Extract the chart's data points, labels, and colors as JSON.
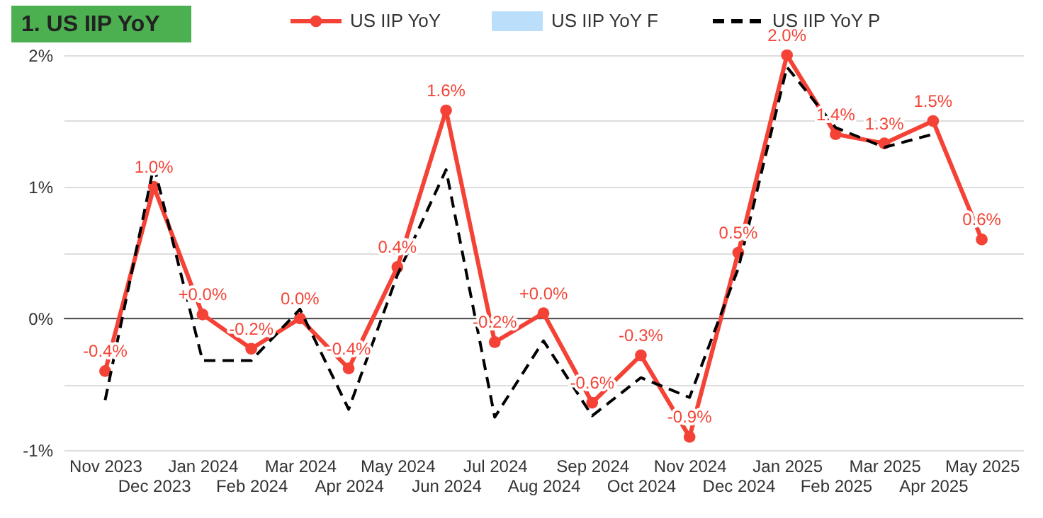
{
  "chart_data": {
    "type": "line",
    "title": "1. US IIP YoY",
    "categories": [
      "Nov 2023",
      "Dec 2023",
      "Jan 2024",
      "Feb 2024",
      "Mar 2024",
      "Apr 2024",
      "May 2024",
      "Jun 2024",
      "Jul 2024",
      "Aug 2024",
      "Sep 2024",
      "Oct 2024",
      "Nov 2024",
      "Dec 2024",
      "Jan 2025",
      "Feb 2025",
      "Mar 2025",
      "Apr 2025",
      "May 2025"
    ],
    "series": [
      {
        "name": "US IIP YoY",
        "color": "#f44336",
        "marker": "circle",
        "line_style": "solid",
        "values": [
          -0.4,
          1.0,
          0.03,
          -0.23,
          0.0,
          -0.38,
          0.39,
          1.58,
          -0.18,
          0.04,
          -0.64,
          -0.28,
          -0.9,
          0.5,
          2.0,
          1.4,
          1.33,
          1.5,
          0.6
        ],
        "value_labels": [
          "-0.4%",
          "1.0%",
          "+0.0%",
          "-0.2%",
          "0.0%",
          "-0.4%",
          "0.4%",
          "1.6%",
          "-0.2%",
          "+0.0%",
          "-0.6%",
          "-0.3%",
          "-0.9%",
          "0.5%",
          "2.0%",
          "1.4%",
          "1.3%",
          "1.5%",
          "0.6%"
        ]
      },
      {
        "name": "US IIP YoY F",
        "color": "#bbdefb",
        "type": "area",
        "values": [
          null,
          null,
          null,
          null,
          null,
          null,
          null,
          null,
          null,
          null,
          null,
          null,
          null,
          null,
          null,
          null,
          null,
          null,
          null
        ]
      },
      {
        "name": "US IIP YoY P",
        "color": "#000000",
        "marker": "none",
        "line_style": "dashed",
        "values": [
          -0.62,
          1.16,
          -0.32,
          -0.32,
          0.07,
          -0.69,
          0.33,
          1.13,
          -0.75,
          -0.17,
          -0.74,
          -0.45,
          -0.6,
          0.38,
          1.91,
          1.45,
          1.3,
          1.4,
          null
        ]
      }
    ],
    "ylim": [
      -1,
      2
    ],
    "yticks": [
      {
        "value": -1,
        "label": "-1%"
      },
      {
        "value": -0.5,
        "label": null
      },
      {
        "value": 0,
        "label": "0%"
      },
      {
        "value": 0.5,
        "label": null
      },
      {
        "value": 1,
        "label": "1%"
      },
      {
        "value": 1.5,
        "label": null
      },
      {
        "value": 2,
        "label": "2%"
      }
    ],
    "grid": "y",
    "legend": "top",
    "ref_lines": [
      {
        "axis": "y",
        "value": 0,
        "color": "#555555"
      }
    ]
  }
}
